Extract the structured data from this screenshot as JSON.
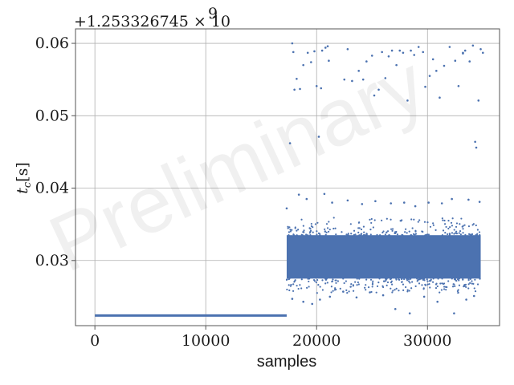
{
  "chart_data": {
    "type": "scatter",
    "title": "",
    "xlabel": "samples",
    "ylabel": "t",
    "ylabel_sub": "c",
    "ylabel_unit": "[s]",
    "y_offset_label": "+1.253326745 × 10",
    "y_offset_exp": "9",
    "watermark": "Preliminary",
    "xlim": [
      -1750,
      36500
    ],
    "ylim": [
      0.021,
      0.062
    ],
    "xticks": [
      0,
      10000,
      20000,
      30000
    ],
    "xtick_labels": [
      "0",
      "10000",
      "20000",
      "30000"
    ],
    "yticks": [
      0.03,
      0.04,
      0.05,
      0.06
    ],
    "ytick_labels": [
      "0.03",
      "0.04",
      "0.05",
      "0.06"
    ],
    "grid": true,
    "color": "#4c72b0",
    "series": [
      {
        "segments": [
          {
            "x_start": 0,
            "x_end": 17300,
            "y": 0.0224
          }
        ],
        "scatter_band": {
          "x_start": 17300,
          "x_end": 34800,
          "y_center": 0.0305,
          "y_low": 0.0275,
          "y_high": 0.0335
        },
        "points": [
          [
            17300,
            0.0372
          ],
          [
            17600,
            0.0462
          ],
          [
            17800,
            0.06
          ],
          [
            17900,
            0.0588
          ],
          [
            18000,
            0.0536
          ],
          [
            18200,
            0.0551
          ],
          [
            18500,
            0.0537
          ],
          [
            18800,
            0.057
          ],
          [
            19200,
            0.0587
          ],
          [
            19500,
            0.0574
          ],
          [
            19800,
            0.0589
          ],
          [
            20000,
            0.0541
          ],
          [
            20200,
            0.0471
          ],
          [
            20400,
            0.0538
          ],
          [
            20500,
            0.059
          ],
          [
            20800,
            0.0594
          ],
          [
            21000,
            0.0596
          ],
          [
            21100,
            0.0576
          ],
          [
            22500,
            0.055
          ],
          [
            22800,
            0.0592
          ],
          [
            23200,
            0.0548
          ],
          [
            23800,
            0.0562
          ],
          [
            24200,
            0.055
          ],
          [
            24500,
            0.0575
          ],
          [
            25000,
            0.0583
          ],
          [
            25200,
            0.0528
          ],
          [
            25600,
            0.0536
          ],
          [
            25900,
            0.0588
          ],
          [
            26200,
            0.0552
          ],
          [
            26500,
            0.0582
          ],
          [
            26800,
            0.059
          ],
          [
            27200,
            0.057
          ],
          [
            27500,
            0.059
          ],
          [
            27800,
            0.0587
          ],
          [
            28200,
            0.0521
          ],
          [
            28500,
            0.059
          ],
          [
            28800,
            0.0584
          ],
          [
            29200,
            0.0595
          ],
          [
            29600,
            0.0588
          ],
          [
            29800,
            0.054
          ],
          [
            30500,
            0.0578
          ],
          [
            30800,
            0.0562
          ],
          [
            31100,
            0.0525
          ],
          [
            31500,
            0.0569
          ],
          [
            32000,
            0.0595
          ],
          [
            32500,
            0.0576
          ],
          [
            32800,
            0.0541
          ],
          [
            33200,
            0.0587
          ],
          [
            33400,
            0.059
          ],
          [
            33800,
            0.0575
          ],
          [
            34100,
            0.0597
          ],
          [
            34300,
            0.0464
          ],
          [
            34400,
            0.0456
          ],
          [
            34600,
            0.0521
          ],
          [
            34800,
            0.0592
          ],
          [
            35000,
            0.0587
          ],
          [
            33200,
            0.0586
          ],
          [
            30200,
            0.0555
          ],
          [
            18400,
            0.0391
          ],
          [
            19100,
            0.0385
          ],
          [
            20700,
            0.0392
          ],
          [
            21400,
            0.038
          ],
          [
            22800,
            0.0383
          ],
          [
            24100,
            0.0378
          ],
          [
            25300,
            0.0382
          ],
          [
            26700,
            0.0379
          ],
          [
            27900,
            0.038
          ],
          [
            28900,
            0.0375
          ],
          [
            30100,
            0.038
          ],
          [
            31300,
            0.0379
          ],
          [
            32200,
            0.0385
          ],
          [
            33700,
            0.0384
          ],
          [
            34700,
            0.0381
          ],
          [
            17800,
            0.0247
          ],
          [
            18800,
            0.0243
          ],
          [
            19600,
            0.024
          ],
          [
            20300,
            0.0246
          ],
          [
            21200,
            0.025
          ],
          [
            22400,
            0.0257
          ],
          [
            23600,
            0.0249
          ],
          [
            24800,
            0.0256
          ],
          [
            26000,
            0.0252
          ],
          [
            27100,
            0.0233
          ],
          [
            28400,
            0.0227
          ],
          [
            29700,
            0.025
          ],
          [
            30900,
            0.0243
          ],
          [
            32400,
            0.0227
          ],
          [
            33500,
            0.0246
          ],
          [
            34200,
            0.0251
          ]
        ]
      }
    ]
  }
}
